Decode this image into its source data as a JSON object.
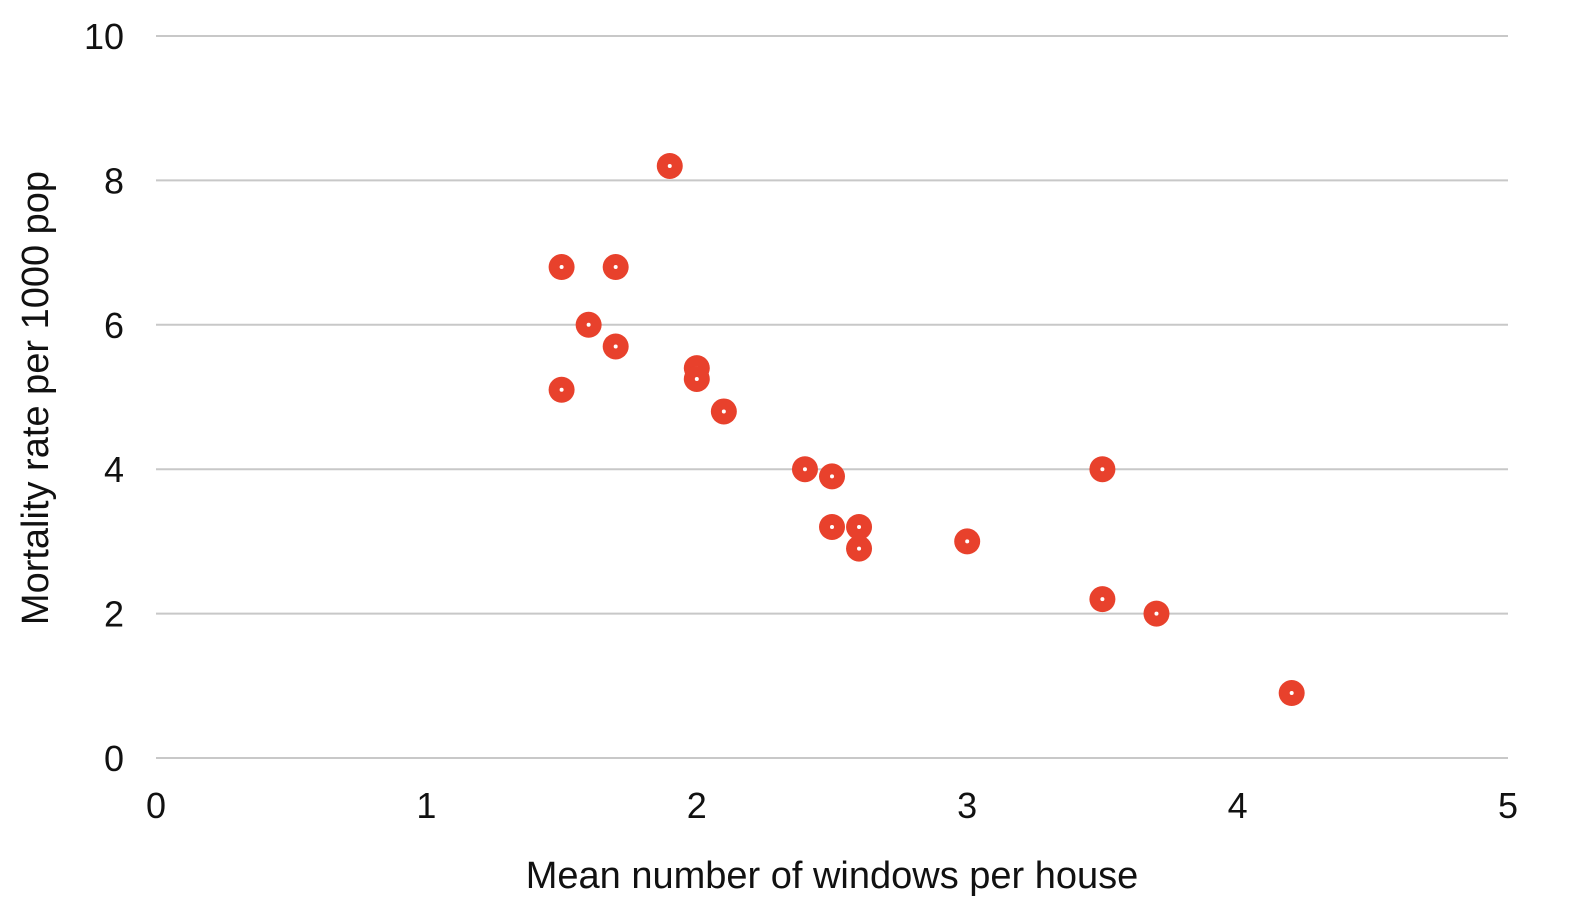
{
  "chart_data": {
    "type": "scatter",
    "title": "",
    "xlabel": "Mean number of windows per house",
    "ylabel": "Mortality rate per 1000 pop",
    "xlim": [
      0,
      5
    ],
    "ylim": [
      0,
      10
    ],
    "x_ticks": [
      "0",
      "1",
      "2",
      "3",
      "4",
      "5"
    ],
    "y_ticks": [
      "0",
      "2",
      "4",
      "6",
      "8",
      "10"
    ],
    "grid": "horizontal",
    "legend": "none",
    "marker_color": "#e8412c",
    "grid_color": "#c8c8c8",
    "series": [
      {
        "points": [
          {
            "x": 1.5,
            "y": 6.8
          },
          {
            "x": 1.7,
            "y": 6.8
          },
          {
            "x": 1.9,
            "y": 8.2
          },
          {
            "x": 1.6,
            "y": 6.0
          },
          {
            "x": 1.7,
            "y": 5.7
          },
          {
            "x": 1.5,
            "y": 5.1
          },
          {
            "x": 2.0,
            "y": 5.4
          },
          {
            "x": 2.0,
            "y": 5.25
          },
          {
            "x": 2.1,
            "y": 4.8
          },
          {
            "x": 2.4,
            "y": 4.0
          },
          {
            "x": 2.5,
            "y": 3.9
          },
          {
            "x": 2.5,
            "y": 3.2
          },
          {
            "x": 2.6,
            "y": 3.2
          },
          {
            "x": 2.6,
            "y": 2.9
          },
          {
            "x": 3.0,
            "y": 3.0
          },
          {
            "x": 3.5,
            "y": 4.0
          },
          {
            "x": 3.5,
            "y": 2.2
          },
          {
            "x": 3.7,
            "y": 2.0
          },
          {
            "x": 4.2,
            "y": 0.9
          }
        ]
      }
    ]
  }
}
